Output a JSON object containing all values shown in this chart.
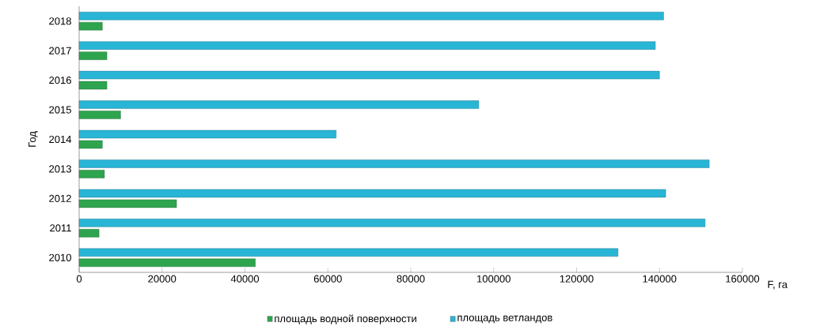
{
  "chart_data": {
    "type": "bar",
    "orientation": "horizontal",
    "xlabel": "F, га",
    "ylabel": "Год",
    "categories": [
      "2018",
      "2017",
      "2016",
      "2015",
      "2014",
      "2013",
      "2012",
      "2011",
      "2010"
    ],
    "series": [
      {
        "name": "площадь водной поверхности",
        "color": "#2ea44f",
        "values": [
          5600,
          6700,
          6700,
          10000,
          5600,
          6100,
          23500,
          4800,
          42500
        ]
      },
      {
        "name": "площадь ветландов",
        "color": "#29b5d6",
        "values": [
          141000,
          139000,
          140000,
          96400,
          62000,
          152000,
          141500,
          151000,
          130000
        ]
      }
    ],
    "xlim": [
      0,
      160000
    ],
    "xticks": [
      0,
      20000,
      40000,
      60000,
      80000,
      100000,
      120000,
      140000,
      160000
    ],
    "legend": "bottom"
  }
}
